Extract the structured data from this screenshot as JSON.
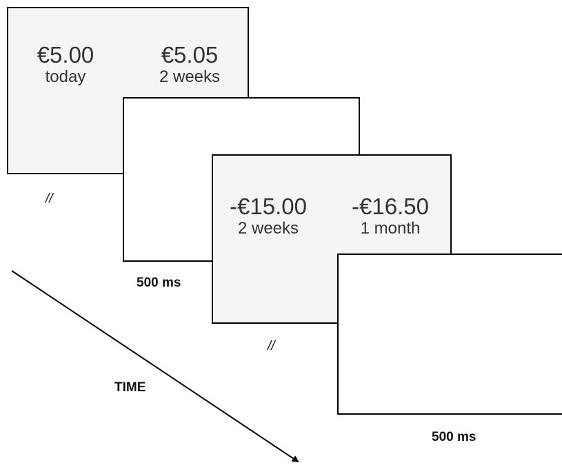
{
  "trial1": {
    "option_a": {
      "amount": "€5.00",
      "delay": "today"
    },
    "option_b": {
      "amount": "€5.05",
      "delay": "2 weeks"
    }
  },
  "trial2": {
    "option_a": {
      "amount": "-€15.00",
      "delay": "2 weeks"
    },
    "option_b": {
      "amount": "-€16.50",
      "delay": "1 month"
    }
  },
  "labels": {
    "separator_1": "//",
    "separator_2": "//",
    "interval_1": "500 ms",
    "interval_2": "500 ms",
    "time_axis": "TIME"
  }
}
